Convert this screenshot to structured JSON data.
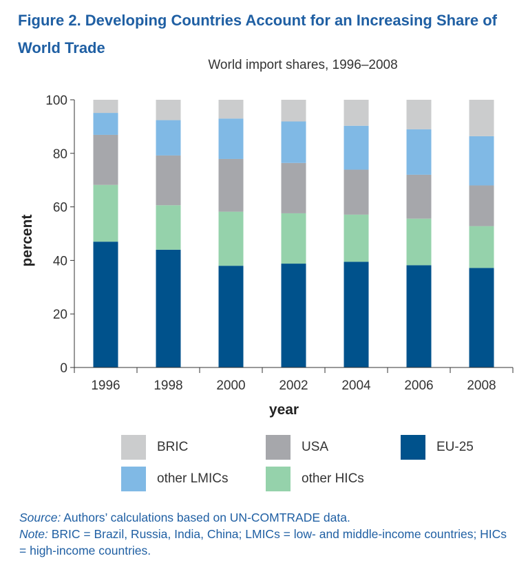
{
  "figure_title": "Figure 2. Developing Countries Account for an Increasing Share of World Trade",
  "subtitle": "World import shares, 1996–2008",
  "chart_data": {
    "type": "bar",
    "stacked": true,
    "categories": [
      "1996",
      "1998",
      "2000",
      "2002",
      "2004",
      "2006",
      "2008"
    ],
    "series": [
      {
        "name": "EU-25",
        "color": "#00528c",
        "values": [
          47.0,
          44.0,
          38.0,
          38.8,
          39.5,
          38.2,
          37.2
        ]
      },
      {
        "name": "other HICs",
        "color": "#95d2ab",
        "values": [
          21.2,
          16.6,
          20.2,
          18.8,
          17.6,
          17.4,
          15.6
        ]
      },
      {
        "name": "USA",
        "color": "#a6a7ab",
        "values": [
          18.7,
          18.6,
          19.7,
          18.8,
          16.8,
          16.4,
          15.2
        ]
      },
      {
        "name": "other LMICs",
        "color": "#80b9e5",
        "values": [
          8.2,
          13.2,
          15.1,
          15.5,
          16.4,
          17.0,
          18.4
        ]
      },
      {
        "name": "BRIC",
        "color": "#cbcccd",
        "values": [
          4.9,
          7.6,
          7.0,
          8.1,
          9.7,
          11.0,
          13.6
        ]
      }
    ],
    "xlabel": "year",
    "ylabel": "percent",
    "ylim": [
      0,
      100
    ],
    "yticks": [
      0,
      20,
      40,
      60,
      80,
      100
    ],
    "grid": false,
    "legend_position": "bottom"
  },
  "legend": [
    {
      "label": "BRIC",
      "color": "#cbcccd"
    },
    {
      "label": "USA",
      "color": "#a6a7ab"
    },
    {
      "label": "EU-25",
      "color": "#00528c"
    },
    {
      "label": "other LMICs",
      "color": "#80b9e5"
    },
    {
      "label": "other HICs",
      "color": "#95d2ab"
    }
  ],
  "notes": {
    "source_label": "Source:",
    "source_text": " Authors’ calculations based on UN-COMTRADE data.",
    "note_label": "Note:",
    "note_text": " BRIC = Brazil, Russia, India, China; LMICs = low- and middle-income countries; HICs = high-income countries."
  }
}
